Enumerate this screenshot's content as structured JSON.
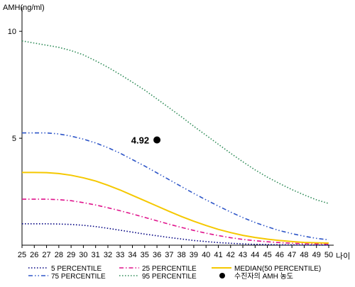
{
  "chart_data": {
    "type": "line",
    "ylabel": "AMH(ng/ml)",
    "xlabel": "나이",
    "x": [
      25,
      26,
      27,
      28,
      29,
      30,
      31,
      32,
      33,
      34,
      35,
      36,
      37,
      38,
      39,
      40,
      41,
      42,
      43,
      44,
      45,
      46,
      47,
      48,
      49,
      50
    ],
    "xlim": [
      25,
      50
    ],
    "ylim": [
      0,
      11
    ],
    "y_ticks": [
      5,
      10
    ],
    "grid": false,
    "legend_position": "bottom",
    "series": [
      {
        "name": "5 PERCENTILE",
        "color": "#000080",
        "dash": "dotted",
        "values": [
          1.0,
          1.0,
          1.0,
          0.99,
          0.97,
          0.93,
          0.87,
          0.79,
          0.7,
          0.61,
          0.52,
          0.44,
          0.36,
          0.29,
          0.22,
          0.17,
          0.12,
          0.09,
          0.06,
          0.04,
          0.03,
          0.02,
          0.015,
          0.01,
          0.005,
          0.005
        ]
      },
      {
        "name": "25 PERCENTILE",
        "color": "#e0138c",
        "dash": "dashdot",
        "values": [
          2.15,
          2.15,
          2.15,
          2.13,
          2.08,
          1.99,
          1.88,
          1.75,
          1.61,
          1.46,
          1.3,
          1.14,
          0.98,
          0.83,
          0.69,
          0.56,
          0.45,
          0.35,
          0.27,
          0.21,
          0.16,
          0.12,
          0.09,
          0.07,
          0.06,
          0.05
        ]
      },
      {
        "name": "MEDIAN(50 PERCENTILE)",
        "color": "#f5c800",
        "dash": "solid",
        "values": [
          3.4,
          3.4,
          3.39,
          3.35,
          3.27,
          3.15,
          3.0,
          2.8,
          2.58,
          2.33,
          2.08,
          1.83,
          1.58,
          1.34,
          1.12,
          0.92,
          0.74,
          0.59,
          0.46,
          0.36,
          0.28,
          0.22,
          0.17,
          0.13,
          0.11,
          0.1
        ]
      },
      {
        "name": "75 PERCENTILE",
        "color": "#2e56c8",
        "dash": "dashdotdot",
        "values": [
          5.25,
          5.25,
          5.25,
          5.2,
          5.1,
          4.96,
          4.78,
          4.56,
          4.3,
          4.0,
          3.7,
          3.38,
          3.06,
          2.74,
          2.42,
          2.12,
          1.83,
          1.55,
          1.29,
          1.06,
          0.86,
          0.68,
          0.54,
          0.42,
          0.32,
          0.25
        ]
      },
      {
        "name": "95 PERCENTILE",
        "color": "#2e8b57",
        "dash": "dotted",
        "values": [
          9.55,
          9.45,
          9.35,
          9.25,
          9.1,
          8.9,
          8.62,
          8.32,
          7.98,
          7.62,
          7.25,
          6.84,
          6.42,
          6.0,
          5.56,
          5.14,
          4.72,
          4.3,
          3.9,
          3.52,
          3.18,
          2.88,
          2.6,
          2.35,
          2.12,
          1.95
        ]
      }
    ],
    "points": [
      {
        "name": "수진자의 AMH 농도",
        "x": 36,
        "y": 4.92,
        "label": "4.92",
        "color": "#000000"
      }
    ]
  }
}
